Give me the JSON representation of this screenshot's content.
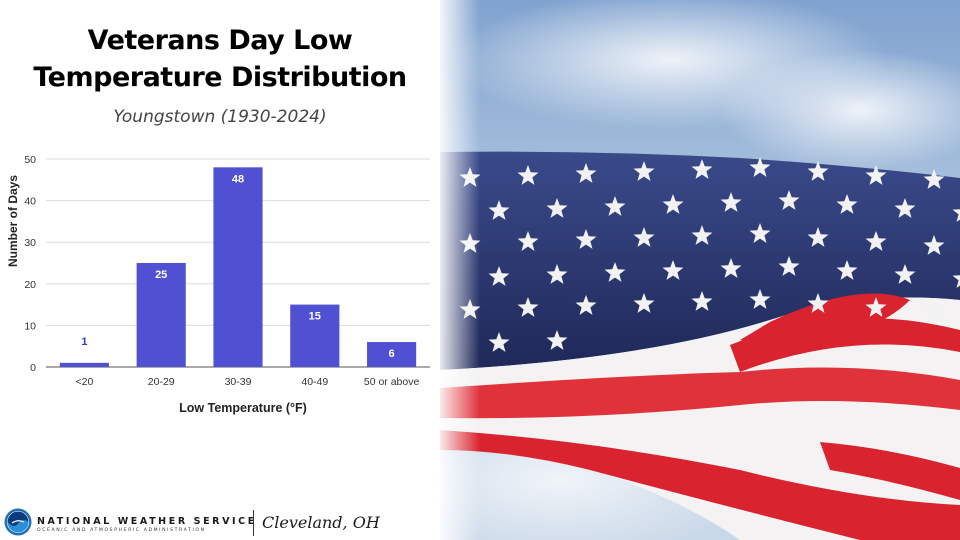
{
  "title_lines": [
    "Veterans Day Low",
    "Temperature Distribution"
  ],
  "subtitle": "Youngstown (1930-2024)",
  "chart_data": {
    "type": "bar",
    "categories": [
      "<20",
      "20-29",
      "30-39",
      "40-49",
      "50 or above"
    ],
    "values": [
      1,
      25,
      48,
      15,
      6
    ],
    "data_labels": [
      "1",
      "25",
      "48",
      "15",
      "6"
    ],
    "xlabel": "Low Temperature (°F)",
    "ylabel": "Number of Days",
    "ylim": [
      0,
      50
    ],
    "yticks": [
      "0",
      "10",
      "20",
      "30",
      "40",
      "50"
    ],
    "grid": true,
    "bar_color": "#5050d2",
    "label_color_inside": "#ffffff",
    "label_color_outside": "#3a3ab8"
  },
  "footer": {
    "agency": "NATIONAL WEATHER SERVICE",
    "agency_sub": "OCEANIC AND ATMOSPHERIC ADMINISTRATION",
    "office": "Cleveland, OH"
  },
  "icons": {
    "logo": "noaa-logo-icon"
  },
  "colors": {
    "flag_blue": "#2c3670",
    "flag_red": "#d9232e",
    "sky": "#9fb8d6"
  }
}
